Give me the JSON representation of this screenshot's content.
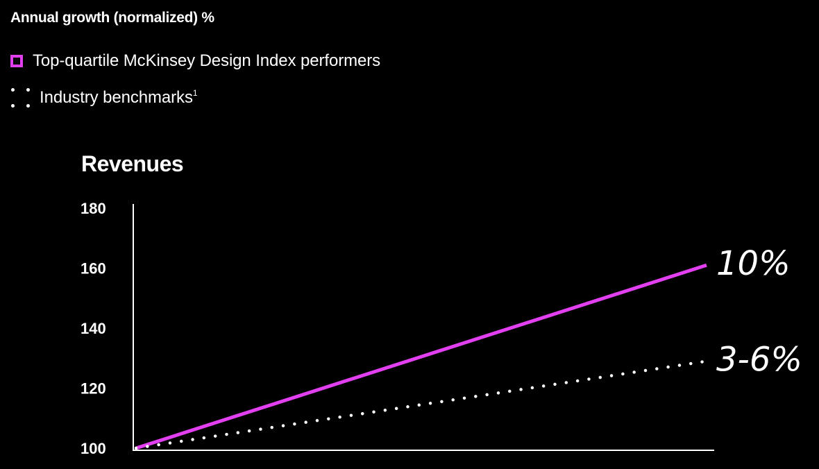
{
  "header": {
    "title": "Annual growth (normalized) %"
  },
  "legend": {
    "items": [
      {
        "label": "Top-quartile McKinsey Design Index performers",
        "marker": "square-outline",
        "color": "#e23ff0"
      },
      {
        "label": "Industry benchmarks",
        "superscript": "1",
        "marker": "dotted",
        "color": "#ffffff"
      }
    ]
  },
  "chart_data": {
    "type": "line",
    "title": "Revenues",
    "xlabel": "",
    "ylabel": "",
    "ylim": [
      100,
      180
    ],
    "yticks": [
      100,
      120,
      140,
      160,
      180
    ],
    "x": [
      0,
      1
    ],
    "grid": false,
    "series": [
      {
        "name": "Top-quartile McKinsey Design Index performers",
        "values": [
          100,
          161
        ],
        "color": "#e23ff0",
        "style": "solid",
        "end_label": "10%"
      },
      {
        "name": "Industry benchmarks",
        "values": [
          100,
          129
        ],
        "color": "#ffffff",
        "style": "dotted",
        "end_label": "3-6%"
      }
    ]
  }
}
